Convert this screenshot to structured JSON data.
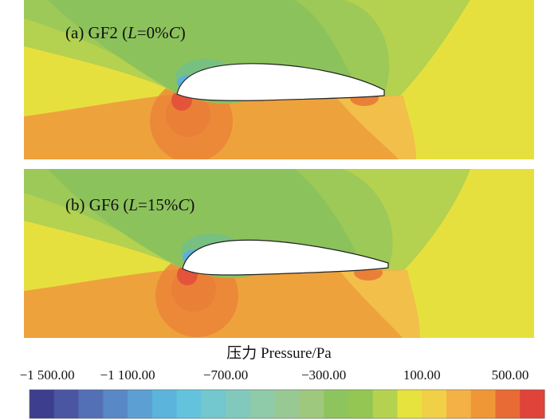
{
  "chart_data": {
    "type": "heatmap",
    "panels": [
      {
        "label_prefix": "(a) GF2",
        "open_paren": "(",
        "var": "L",
        "eq": "=0%",
        "unit": "C",
        "close_paren": ")"
      },
      {
        "label_prefix": "(b) GF6",
        "open_paren": "(",
        "var": "L",
        "eq": "=15%",
        "unit": "C",
        "close_paren": ")"
      }
    ],
    "colorbar": {
      "title": "压力 Pressure/Pa",
      "tick_labels": [
        "−1 500.00",
        "−1 100.00",
        "−700.00",
        "−300.00",
        "100.00",
        "500.00"
      ],
      "tick_values": [
        -1500,
        -1100,
        -700,
        -300,
        100,
        500
      ],
      "range": [
        -1500,
        600
      ],
      "levels": 21,
      "colors": [
        "#3e3e8e",
        "#4a56a2",
        "#5370b6",
        "#5888c6",
        "#5c9fd2",
        "#5bb4dc",
        "#64c3dc",
        "#73c7ce",
        "#82c9bd",
        "#8fcaa9",
        "#98c993",
        "#9ec87d",
        "#8ec45e",
        "#93c652",
        "#b4d24f",
        "#e6e23e",
        "#f1d047",
        "#f3b146",
        "#ef9637",
        "#e86a34",
        "#e0433a"
      ]
    },
    "field_colors": {
      "far_field": "#e6e03f",
      "suction_outer": "#b4d14f",
      "suction_mid": "#9cc958",
      "suction_inner": "#8cc25c",
      "suction_peak": "#5bb0dc",
      "pressure_outer": "#f1bf4a",
      "pressure_main": "#eea23c",
      "stagnation_outer": "#ea8038",
      "stagnation_inner": "#e4543a"
    }
  }
}
